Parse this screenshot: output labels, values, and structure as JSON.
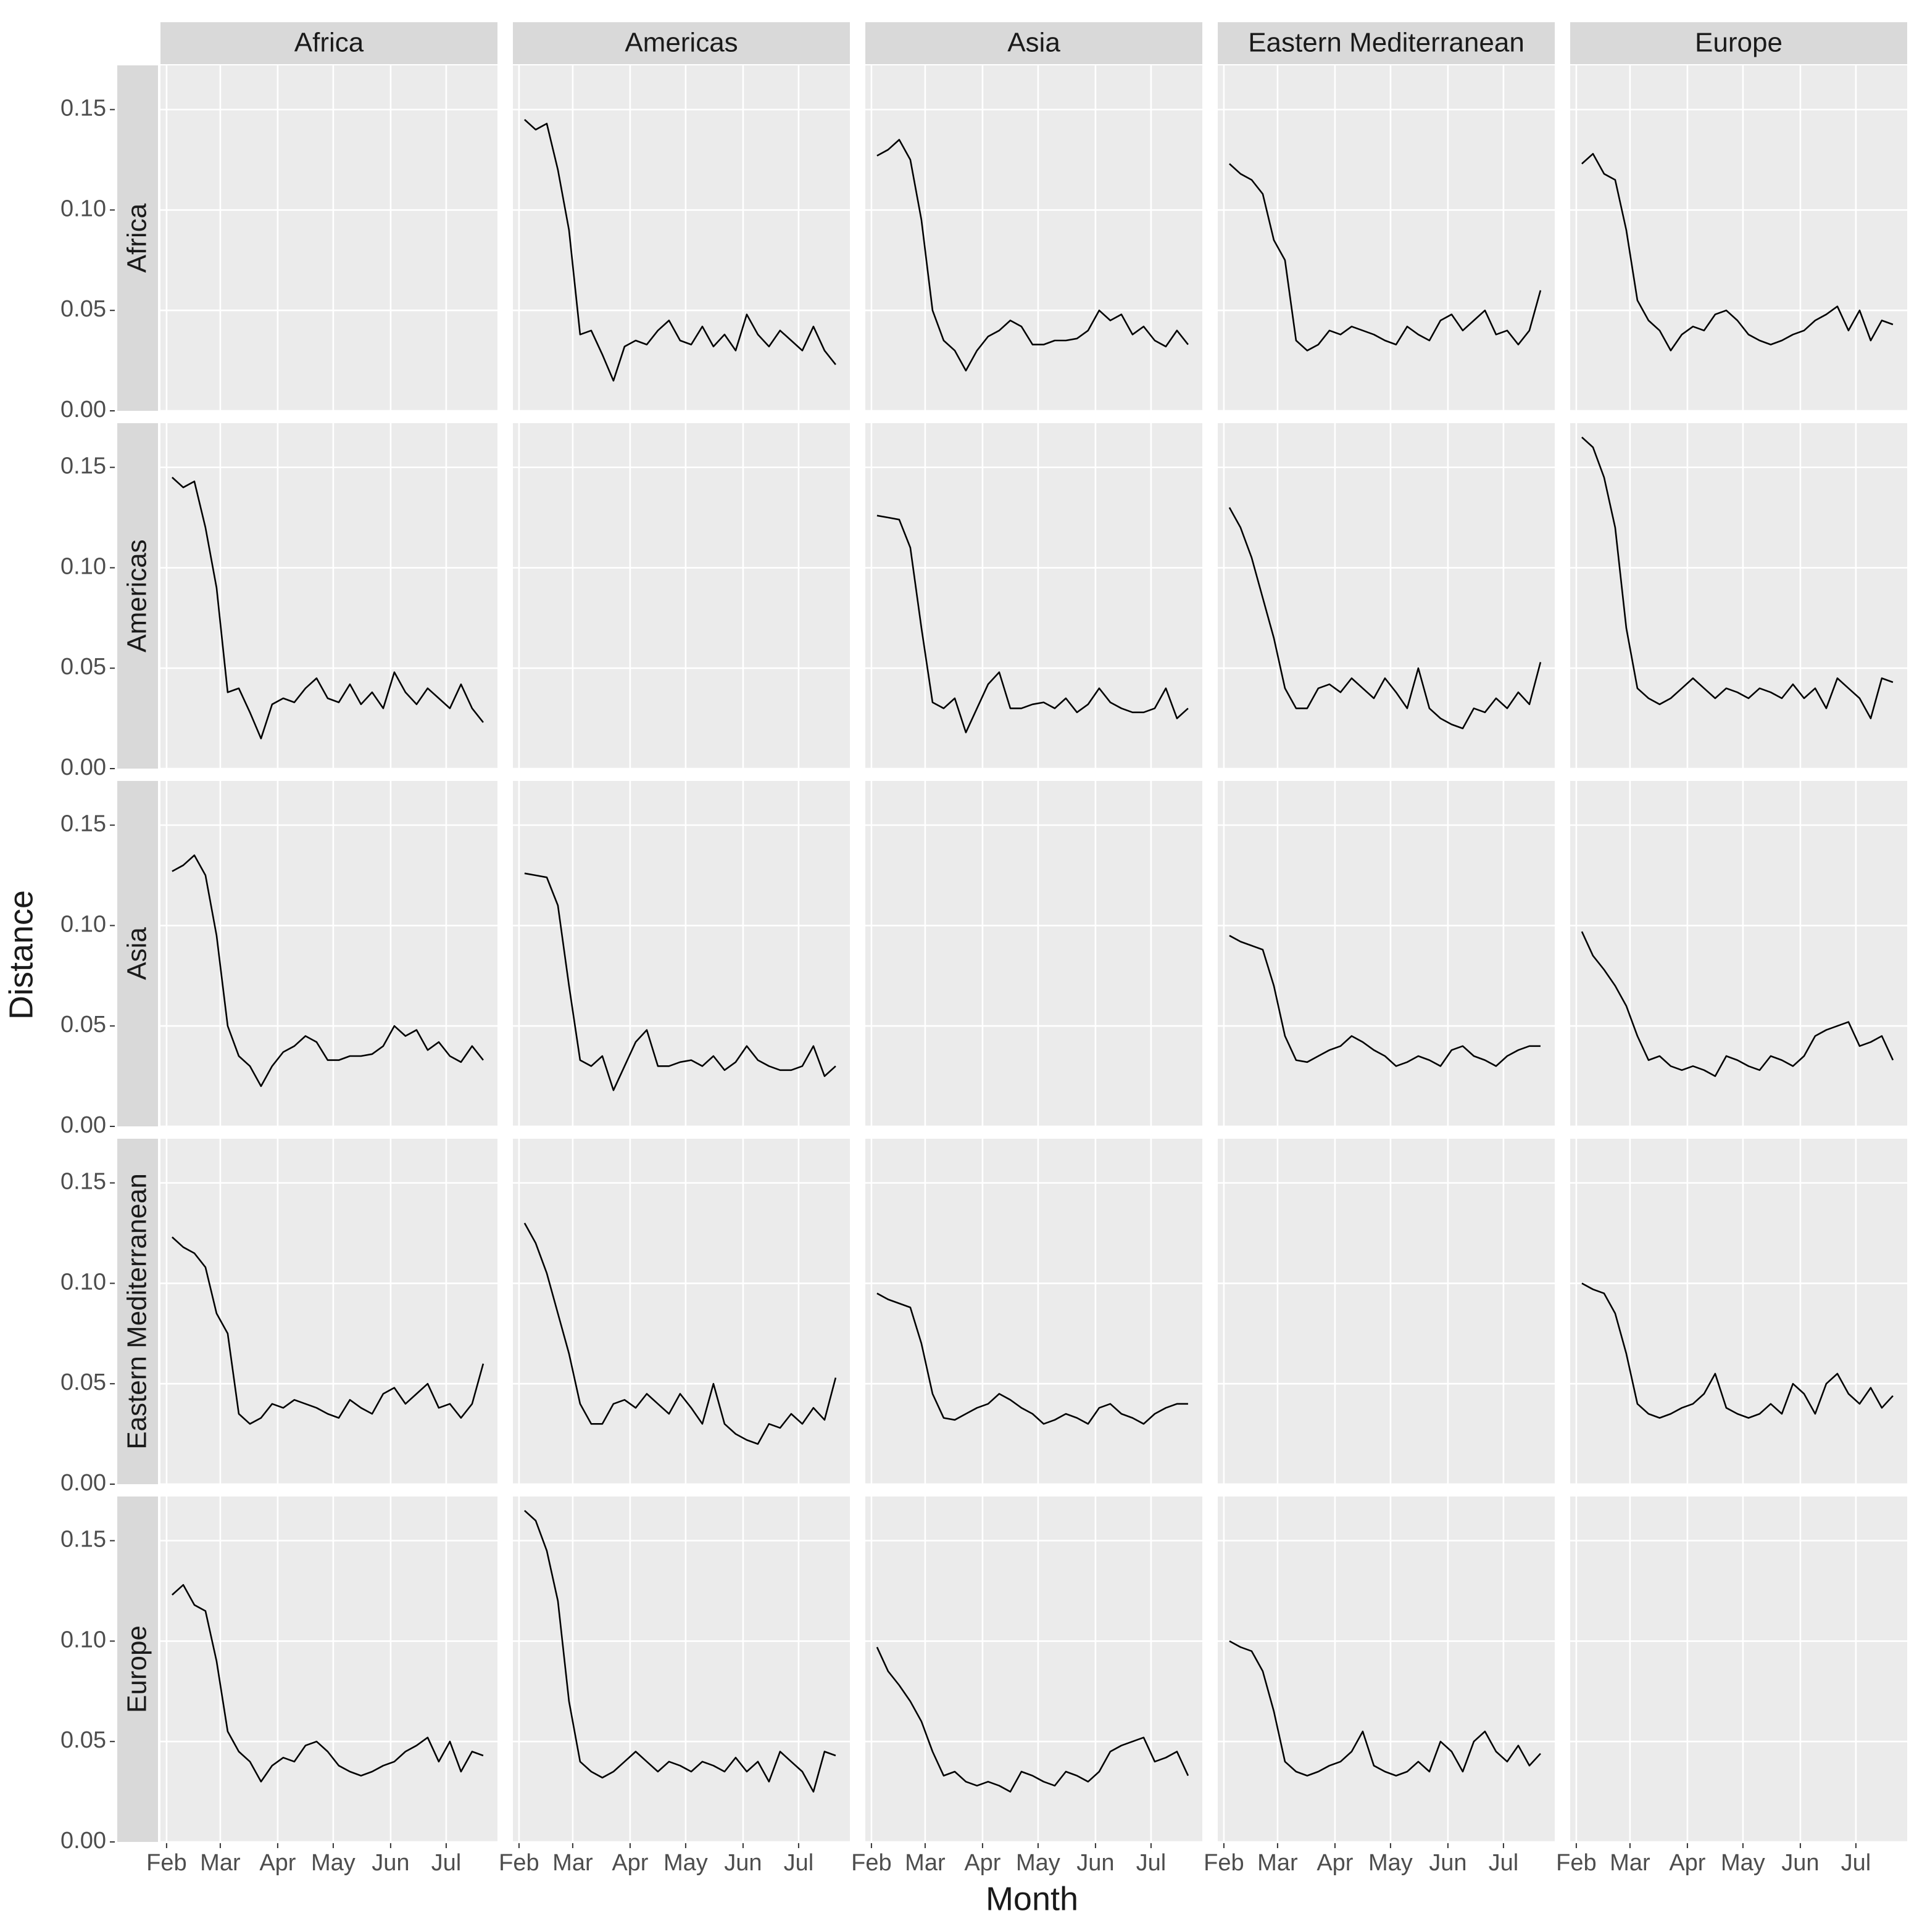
{
  "chart_data": {
    "type": "line",
    "x_label": "Month",
    "y_label": "Distance",
    "columns": [
      "Africa",
      "Americas",
      "Asia",
      "Eastern Mediterranean",
      "Europe"
    ],
    "x": [
      3,
      9,
      15,
      21,
      27,
      33,
      39,
      45,
      51,
      57,
      63,
      69,
      75,
      81,
      87,
      93,
      99,
      105,
      111,
      117,
      123,
      129,
      135,
      141,
      147,
      153,
      159,
      165,
      171
    ],
    "xlim": [
      -3.3,
      178.7
    ],
    "xticks": [
      {
        "value": 0,
        "label": "Feb"
      },
      {
        "value": 29,
        "label": "Mar"
      },
      {
        "value": 60,
        "label": "Apr"
      },
      {
        "value": 90,
        "label": "May"
      },
      {
        "value": 121,
        "label": "Jun"
      },
      {
        "value": 151,
        "label": "Jul"
      }
    ],
    "ylim": [
      0,
      0.172
    ],
    "yticks": [
      {
        "value": 0,
        "label": "0.00"
      },
      {
        "value": 0.05,
        "label": "0.05"
      },
      {
        "value": 0.1,
        "label": "0.10"
      },
      {
        "value": 0.15,
        "label": "0.15"
      }
    ],
    "color": "#000000",
    "grid": true,
    "rows": [
      {
        "name": "Africa",
        "series": [
          null,
          [
            0.145,
            0.14,
            0.143,
            0.12,
            0.09,
            0.038,
            0.04,
            0.028,
            0.015,
            0.032,
            0.035,
            0.033,
            0.04,
            0.045,
            0.035,
            0.033,
            0.042,
            0.032,
            0.038,
            0.03,
            0.048,
            0.038,
            0.032,
            0.04,
            0.035,
            0.03,
            0.042,
            0.03,
            0.023
          ],
          [
            0.127,
            0.13,
            0.135,
            0.125,
            0.095,
            0.05,
            0.035,
            0.03,
            0.02,
            0.03,
            0.037,
            0.04,
            0.045,
            0.042,
            0.033,
            0.033,
            0.035,
            0.035,
            0.036,
            0.04,
            0.05,
            0.045,
            0.048,
            0.038,
            0.042,
            0.035,
            0.032,
            0.04,
            0.033
          ],
          [
            0.123,
            0.118,
            0.115,
            0.108,
            0.085,
            0.075,
            0.035,
            0.03,
            0.033,
            0.04,
            0.038,
            0.042,
            0.04,
            0.038,
            0.035,
            0.033,
            0.042,
            0.038,
            0.035,
            0.045,
            0.048,
            0.04,
            0.045,
            0.05,
            0.038,
            0.04,
            0.033,
            0.04,
            0.06
          ],
          [
            0.123,
            0.128,
            0.118,
            0.115,
            0.09,
            0.055,
            0.045,
            0.04,
            0.03,
            0.038,
            0.042,
            0.04,
            0.048,
            0.05,
            0.045,
            0.038,
            0.035,
            0.033,
            0.035,
            0.038,
            0.04,
            0.045,
            0.048,
            0.052,
            0.04,
            0.05,
            0.035,
            0.045,
            0.043
          ]
        ]
      },
      {
        "name": "Americas",
        "series": [
          [
            0.145,
            0.14,
            0.143,
            0.12,
            0.09,
            0.038,
            0.04,
            0.028,
            0.015,
            0.032,
            0.035,
            0.033,
            0.04,
            0.045,
            0.035,
            0.033,
            0.042,
            0.032,
            0.038,
            0.03,
            0.048,
            0.038,
            0.032,
            0.04,
            0.035,
            0.03,
            0.042,
            0.03,
            0.023
          ],
          null,
          [
            0.126,
            0.125,
            0.124,
            0.11,
            0.07,
            0.033,
            0.03,
            0.035,
            0.018,
            0.03,
            0.042,
            0.048,
            0.03,
            0.03,
            0.032,
            0.033,
            0.03,
            0.035,
            0.028,
            0.032,
            0.04,
            0.033,
            0.03,
            0.028,
            0.028,
            0.03,
            0.04,
            0.025,
            0.03
          ],
          [
            0.13,
            0.12,
            0.105,
            0.085,
            0.065,
            0.04,
            0.03,
            0.03,
            0.04,
            0.042,
            0.038,
            0.045,
            0.04,
            0.035,
            0.045,
            0.038,
            0.03,
            0.05,
            0.03,
            0.025,
            0.022,
            0.02,
            0.03,
            0.028,
            0.035,
            0.03,
            0.038,
            0.032,
            0.053
          ],
          [
            0.165,
            0.16,
            0.145,
            0.12,
            0.07,
            0.04,
            0.035,
            0.032,
            0.035,
            0.04,
            0.045,
            0.04,
            0.035,
            0.04,
            0.038,
            0.035,
            0.04,
            0.038,
            0.035,
            0.042,
            0.035,
            0.04,
            0.03,
            0.045,
            0.04,
            0.035,
            0.025,
            0.045,
            0.043
          ]
        ]
      },
      {
        "name": "Asia",
        "series": [
          [
            0.127,
            0.13,
            0.135,
            0.125,
            0.095,
            0.05,
            0.035,
            0.03,
            0.02,
            0.03,
            0.037,
            0.04,
            0.045,
            0.042,
            0.033,
            0.033,
            0.035,
            0.035,
            0.036,
            0.04,
            0.05,
            0.045,
            0.048,
            0.038,
            0.042,
            0.035,
            0.032,
            0.04,
            0.033
          ],
          [
            0.126,
            0.125,
            0.124,
            0.11,
            0.07,
            0.033,
            0.03,
            0.035,
            0.018,
            0.03,
            0.042,
            0.048,
            0.03,
            0.03,
            0.032,
            0.033,
            0.03,
            0.035,
            0.028,
            0.032,
            0.04,
            0.033,
            0.03,
            0.028,
            0.028,
            0.03,
            0.04,
            0.025,
            0.03
          ],
          null,
          [
            0.095,
            0.092,
            0.09,
            0.088,
            0.07,
            0.045,
            0.033,
            0.032,
            0.035,
            0.038,
            0.04,
            0.045,
            0.042,
            0.038,
            0.035,
            0.03,
            0.032,
            0.035,
            0.033,
            0.03,
            0.038,
            0.04,
            0.035,
            0.033,
            0.03,
            0.035,
            0.038,
            0.04,
            0.04
          ],
          [
            0.097,
            0.085,
            0.078,
            0.07,
            0.06,
            0.045,
            0.033,
            0.035,
            0.03,
            0.028,
            0.03,
            0.028,
            0.025,
            0.035,
            0.033,
            0.03,
            0.028,
            0.035,
            0.033,
            0.03,
            0.035,
            0.045,
            0.048,
            0.05,
            0.052,
            0.04,
            0.042,
            0.045,
            0.033
          ]
        ]
      },
      {
        "name": "Eastern Mediterranean",
        "series": [
          [
            0.123,
            0.118,
            0.115,
            0.108,
            0.085,
            0.075,
            0.035,
            0.03,
            0.033,
            0.04,
            0.038,
            0.042,
            0.04,
            0.038,
            0.035,
            0.033,
            0.042,
            0.038,
            0.035,
            0.045,
            0.048,
            0.04,
            0.045,
            0.05,
            0.038,
            0.04,
            0.033,
            0.04,
            0.06
          ],
          [
            0.13,
            0.12,
            0.105,
            0.085,
            0.065,
            0.04,
            0.03,
            0.03,
            0.04,
            0.042,
            0.038,
            0.045,
            0.04,
            0.035,
            0.045,
            0.038,
            0.03,
            0.05,
            0.03,
            0.025,
            0.022,
            0.02,
            0.03,
            0.028,
            0.035,
            0.03,
            0.038,
            0.032,
            0.053
          ],
          [
            0.095,
            0.092,
            0.09,
            0.088,
            0.07,
            0.045,
            0.033,
            0.032,
            0.035,
            0.038,
            0.04,
            0.045,
            0.042,
            0.038,
            0.035,
            0.03,
            0.032,
            0.035,
            0.033,
            0.03,
            0.038,
            0.04,
            0.035,
            0.033,
            0.03,
            0.035,
            0.038,
            0.04,
            0.04
          ],
          null,
          [
            0.1,
            0.097,
            0.095,
            0.085,
            0.065,
            0.04,
            0.035,
            0.033,
            0.035,
            0.038,
            0.04,
            0.045,
            0.055,
            0.038,
            0.035,
            0.033,
            0.035,
            0.04,
            0.035,
            0.05,
            0.045,
            0.035,
            0.05,
            0.055,
            0.045,
            0.04,
            0.048,
            0.038,
            0.044
          ]
        ]
      },
      {
        "name": "Europe",
        "series": [
          [
            0.123,
            0.128,
            0.118,
            0.115,
            0.09,
            0.055,
            0.045,
            0.04,
            0.03,
            0.038,
            0.042,
            0.04,
            0.048,
            0.05,
            0.045,
            0.038,
            0.035,
            0.033,
            0.035,
            0.038,
            0.04,
            0.045,
            0.048,
            0.052,
            0.04,
            0.05,
            0.035,
            0.045,
            0.043
          ],
          [
            0.165,
            0.16,
            0.145,
            0.12,
            0.07,
            0.04,
            0.035,
            0.032,
            0.035,
            0.04,
            0.045,
            0.04,
            0.035,
            0.04,
            0.038,
            0.035,
            0.04,
            0.038,
            0.035,
            0.042,
            0.035,
            0.04,
            0.03,
            0.045,
            0.04,
            0.035,
            0.025,
            0.045,
            0.043
          ],
          [
            0.097,
            0.085,
            0.078,
            0.07,
            0.06,
            0.045,
            0.033,
            0.035,
            0.03,
            0.028,
            0.03,
            0.028,
            0.025,
            0.035,
            0.033,
            0.03,
            0.028,
            0.035,
            0.033,
            0.03,
            0.035,
            0.045,
            0.048,
            0.05,
            0.052,
            0.04,
            0.042,
            0.045,
            0.033
          ],
          [
            0.1,
            0.097,
            0.095,
            0.085,
            0.065,
            0.04,
            0.035,
            0.033,
            0.035,
            0.038,
            0.04,
            0.045,
            0.055,
            0.038,
            0.035,
            0.033,
            0.035,
            0.04,
            0.035,
            0.05,
            0.045,
            0.035,
            0.05,
            0.055,
            0.045,
            0.04,
            0.048,
            0.038,
            0.044
          ],
          null
        ]
      }
    ]
  }
}
